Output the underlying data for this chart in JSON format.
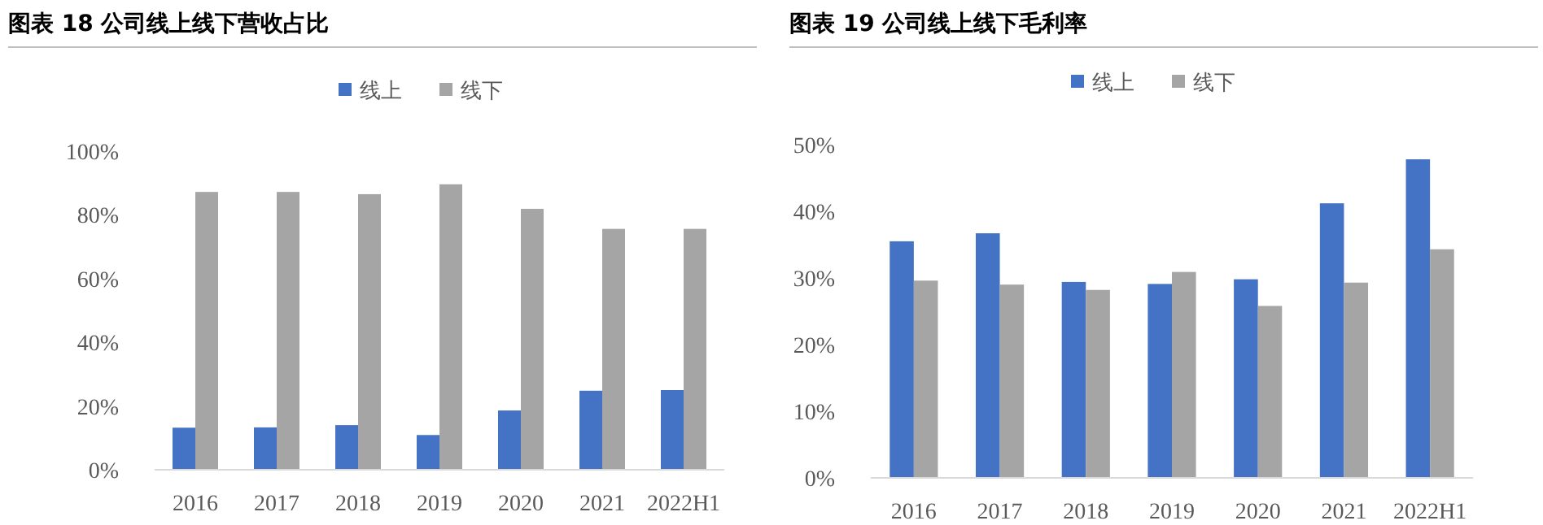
{
  "chart_data": [
    {
      "type": "bar",
      "title": "图表 18 公司线上线下营收占比",
      "categories": [
        "2016",
        "2017",
        "2018",
        "2019",
        "2020",
        "2021",
        "2022H1"
      ],
      "series": [
        {
          "name": "线上",
          "color": "#4472c4",
          "values": [
            13.2,
            13.3,
            14.0,
            10.9,
            18.6,
            24.8,
            25.0
          ]
        },
        {
          "name": "线下",
          "color": "#a5a5a5",
          "values": [
            87.2,
            87.2,
            86.5,
            89.6,
            81.9,
            75.6,
            75.6
          ]
        }
      ],
      "ylim": [
        0,
        100
      ],
      "yticks": [
        {
          "value": 0,
          "label": "0%"
        },
        {
          "value": 20,
          "label": "20%"
        },
        {
          "value": 40,
          "label": "40%"
        },
        {
          "value": 60,
          "label": "60%"
        },
        {
          "value": 80,
          "label": "80%"
        },
        {
          "value": 100,
          "label": "100%"
        }
      ],
      "grid": false,
      "legend": "top"
    },
    {
      "type": "bar",
      "title": "图表 19 公司线上线下毛利率",
      "categories": [
        "2016",
        "2017",
        "2018",
        "2019",
        "2020",
        "2021",
        "2022H1"
      ],
      "series": [
        {
          "name": "线上",
          "color": "#4472c4",
          "values": [
            35.5,
            36.7,
            29.4,
            29.1,
            29.8,
            41.2,
            47.8
          ]
        },
        {
          "name": "线下",
          "color": "#a5a5a5",
          "values": [
            29.6,
            29.0,
            28.2,
            30.9,
            25.8,
            29.3,
            34.3
          ]
        }
      ],
      "ylim": [
        0,
        50
      ],
      "yticks": [
        {
          "value": 0,
          "label": "0%"
        },
        {
          "value": 10,
          "label": "10%"
        },
        {
          "value": 20,
          "label": "20%"
        },
        {
          "value": 30,
          "label": "30%"
        },
        {
          "value": 40,
          "label": "40%"
        },
        {
          "value": 50,
          "label": "50%"
        }
      ],
      "grid": false,
      "legend": "top"
    }
  ]
}
